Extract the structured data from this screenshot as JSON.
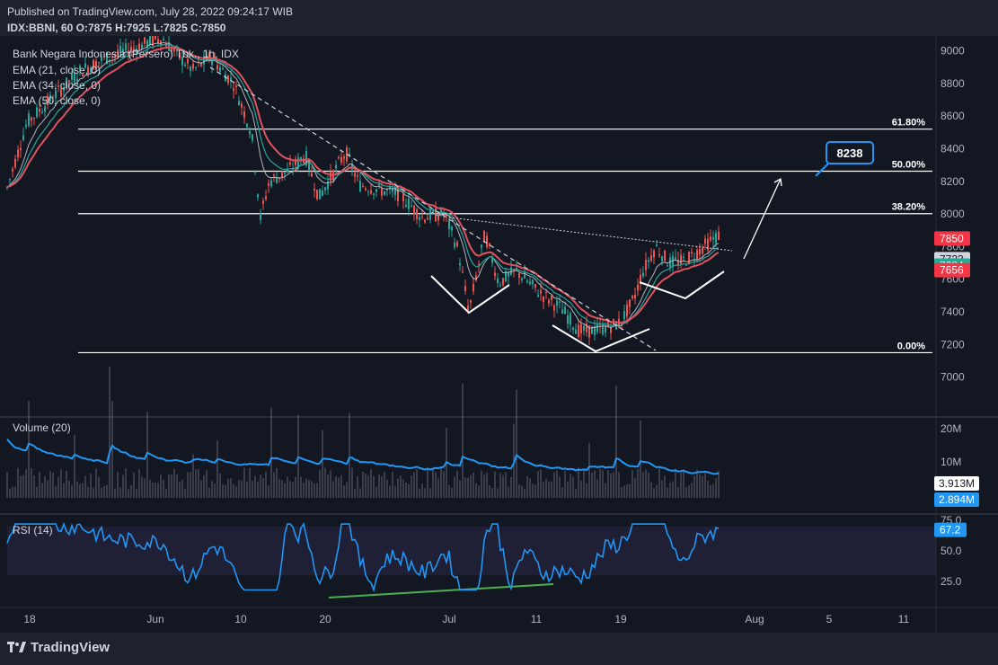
{
  "header": {
    "published": "Published on TradingView.com, July 28, 2022 09:24:17 WIB",
    "ohlc": "IDX:BBNI, 60  O:7875  H:7925  L:7825  C:7850"
  },
  "legend": {
    "title": "Bank Negara Indonesia (Persero) Tbk., 1h, IDX",
    "ema1": "EMA (21, close, 0)",
    "ema2": "EMA (34, close, 0)",
    "ema3": "EMA (50, close, 0)"
  },
  "footer": {
    "brand": "TradingView"
  },
  "colors": {
    "background": "#131722",
    "up": "#26a69a",
    "down": "#ef5350",
    "ema21": "#b2b5be",
    "ema34": "#26a69a",
    "ema50": "#e0525e",
    "rsi": "#2196f3",
    "volume_ma": "#2196f3",
    "divergence": "#4caf50"
  },
  "chart_data": [
    {
      "type": "candlestick",
      "name": "price",
      "ylim": [
        6820,
        9130
      ],
      "yticks": [
        "9000",
        "8800",
        "8600",
        "8400",
        "8200",
        "8000",
        "7800",
        "7600",
        "7400",
        "7200",
        "7000"
      ],
      "xticks": [
        "18",
        "Jun",
        "10",
        "20",
        "Jul",
        "11",
        "19",
        "Aug",
        "5",
        "11"
      ],
      "fib_levels": [
        {
          "label": "61.80%",
          "value": 8520
        },
        {
          "label": "50.00%",
          "value": 8262
        },
        {
          "label": "38.20%",
          "value": 8002
        },
        {
          "label": "0.00%",
          "value": 7150
        }
      ],
      "target": {
        "label": "8238",
        "value": 8238
      },
      "price_tags": [
        {
          "label": "7850",
          "value": 7850,
          "color": "#f23645"
        },
        {
          "label": "7723",
          "value": 7723,
          "color": "#d1d4dc"
        },
        {
          "label": "7684",
          "value": 7684,
          "color": "#22ab94"
        },
        {
          "label": "7656",
          "value": 7656,
          "color": "#f23645"
        }
      ],
      "series": [
        {
          "name": "EMA (21, close, 0)",
          "values": []
        },
        {
          "name": "EMA (34, close, 0)",
          "values": []
        },
        {
          "name": "EMA (50, close, 0)",
          "values": []
        }
      ]
    },
    {
      "type": "bar",
      "name": "volume",
      "title": "Volume (20)",
      "yticks": [
        "20M",
        "10M"
      ],
      "tags": [
        {
          "label": "3.913M",
          "color": "#ffffff"
        },
        {
          "label": "2.894M",
          "color": "#2196f3"
        }
      ]
    },
    {
      "type": "line",
      "name": "rsi",
      "title": "RSI (14)",
      "ylim": [
        10,
        80
      ],
      "yticks": [
        "75.0",
        "50.0",
        "25.0"
      ],
      "band": [
        30,
        70
      ],
      "value_tag": "67.2"
    }
  ]
}
